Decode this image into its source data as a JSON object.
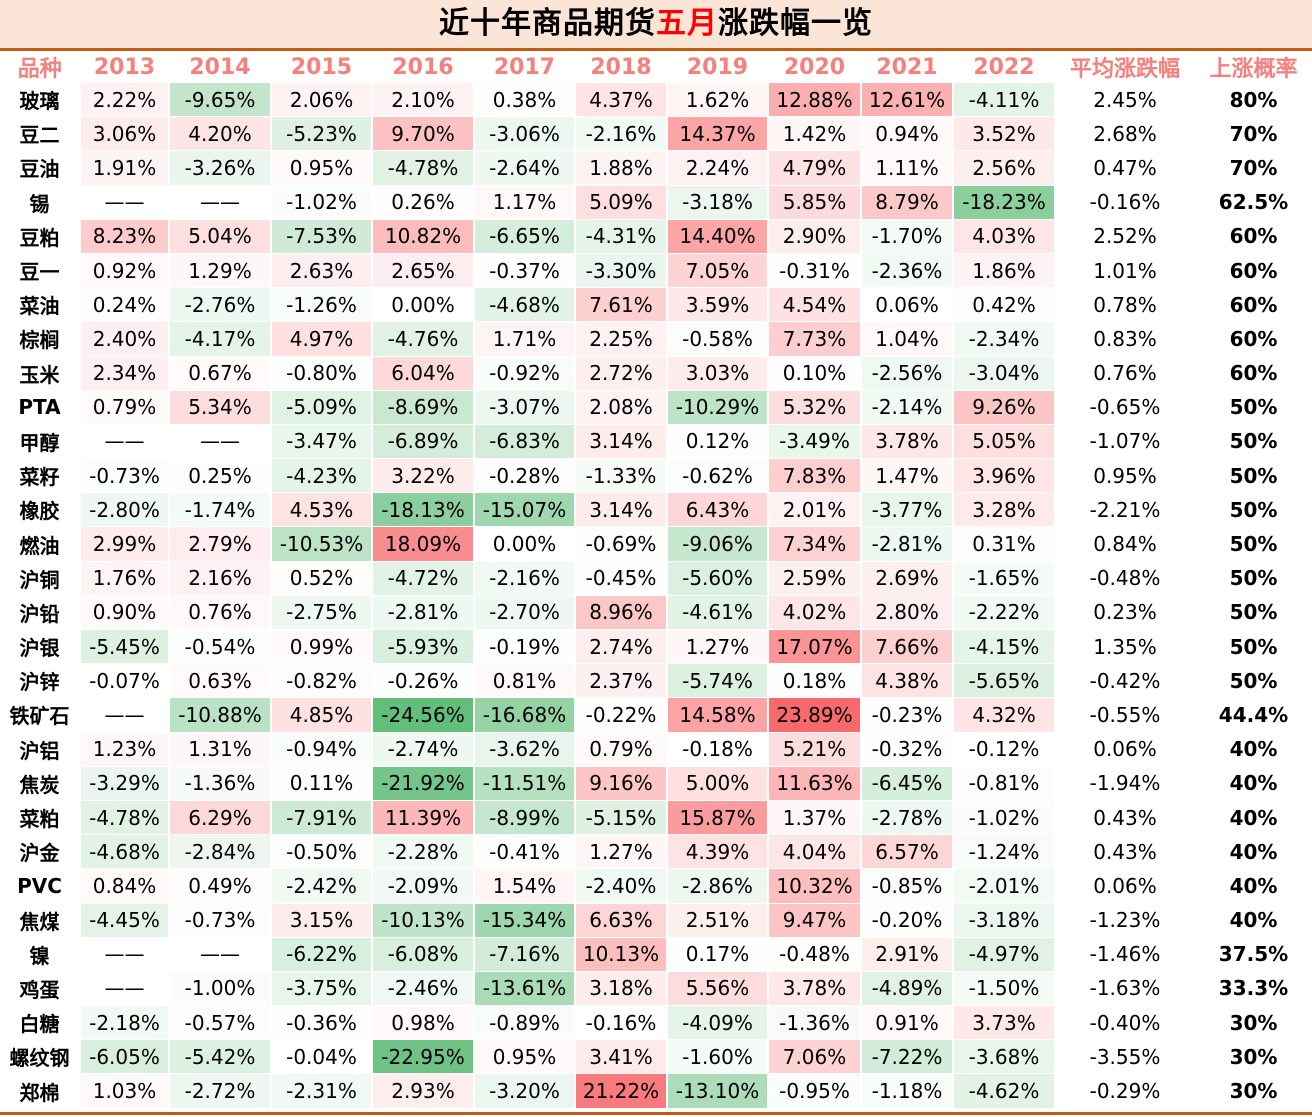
{
  "title": {
    "before": "近十年商品期货",
    "highlight": "五月",
    "after": "涨跌幅一览"
  },
  "chart_data": {
    "type": "table",
    "headers": [
      "品种",
      "2013",
      "2014",
      "2015",
      "2016",
      "2017",
      "2018",
      "2019",
      "2020",
      "2021",
      "2022",
      "平均涨跌幅",
      "上涨概率"
    ],
    "rows": [
      [
        "玻璃",
        "2.22%",
        "-9.65%",
        "2.06%",
        "2.10%",
        "0.38%",
        "4.37%",
        "1.62%",
        "12.88%",
        "12.61%",
        "-4.11%",
        "2.45%",
        "80%"
      ],
      [
        "豆二",
        "3.06%",
        "4.20%",
        "-5.23%",
        "9.70%",
        "-3.06%",
        "-2.16%",
        "14.37%",
        "1.42%",
        "0.94%",
        "3.52%",
        "2.68%",
        "70%"
      ],
      [
        "豆油",
        "1.91%",
        "-3.26%",
        "0.95%",
        "-4.78%",
        "-2.64%",
        "1.88%",
        "2.24%",
        "4.79%",
        "1.11%",
        "2.56%",
        "0.47%",
        "70%"
      ],
      [
        "锡",
        "——",
        "——",
        "-1.02%",
        "0.26%",
        "1.17%",
        "5.09%",
        "-3.18%",
        "5.85%",
        "8.79%",
        "-18.23%",
        "-0.16%",
        "62.5%"
      ],
      [
        "豆粕",
        "8.23%",
        "5.04%",
        "-7.53%",
        "10.82%",
        "-6.65%",
        "-4.31%",
        "14.40%",
        "2.90%",
        "-1.70%",
        "4.03%",
        "2.52%",
        "60%"
      ],
      [
        "豆一",
        "0.92%",
        "1.29%",
        "2.63%",
        "2.65%",
        "-0.37%",
        "-3.30%",
        "7.05%",
        "-0.31%",
        "-2.36%",
        "1.86%",
        "1.01%",
        "60%"
      ],
      [
        "菜油",
        "0.24%",
        "-2.76%",
        "-1.26%",
        "0.00%",
        "-4.68%",
        "7.61%",
        "3.59%",
        "4.54%",
        "0.06%",
        "0.42%",
        "0.78%",
        "60%"
      ],
      [
        "棕榈",
        "2.40%",
        "-4.17%",
        "4.97%",
        "-4.76%",
        "1.71%",
        "2.25%",
        "-0.58%",
        "7.73%",
        "1.04%",
        "-2.34%",
        "0.83%",
        "60%"
      ],
      [
        "玉米",
        "2.34%",
        "0.67%",
        "-0.80%",
        "6.04%",
        "-0.92%",
        "2.72%",
        "3.03%",
        "0.10%",
        "-2.56%",
        "-3.04%",
        "0.76%",
        "60%"
      ],
      [
        "PTA",
        "0.79%",
        "5.34%",
        "-5.09%",
        "-8.69%",
        "-3.07%",
        "2.08%",
        "-10.29%",
        "5.32%",
        "-2.14%",
        "9.26%",
        "-0.65%",
        "50%"
      ],
      [
        "甲醇",
        "——",
        "——",
        "-3.47%",
        "-6.89%",
        "-6.83%",
        "3.14%",
        "0.12%",
        "-3.49%",
        "3.78%",
        "5.05%",
        "-1.07%",
        "50%"
      ],
      [
        "菜籽",
        "-0.73%",
        "0.25%",
        "-4.23%",
        "3.22%",
        "-0.28%",
        "-1.33%",
        "-0.62%",
        "7.83%",
        "1.47%",
        "3.96%",
        "0.95%",
        "50%"
      ],
      [
        "橡胶",
        "-2.80%",
        "-1.74%",
        "4.53%",
        "-18.13%",
        "-15.07%",
        "3.14%",
        "6.43%",
        "2.01%",
        "-3.77%",
        "3.28%",
        "-2.21%",
        "50%"
      ],
      [
        "燃油",
        "2.99%",
        "2.79%",
        "-10.53%",
        "18.09%",
        "0.00%",
        "-0.69%",
        "-9.06%",
        "7.34%",
        "-2.81%",
        "0.31%",
        "0.84%",
        "50%"
      ],
      [
        "沪铜",
        "1.76%",
        "2.16%",
        "0.52%",
        "-4.72%",
        "-2.16%",
        "-0.45%",
        "-5.60%",
        "2.59%",
        "2.69%",
        "-1.65%",
        "-0.48%",
        "50%"
      ],
      [
        "沪铅",
        "0.90%",
        "0.76%",
        "-2.75%",
        "-2.81%",
        "-2.70%",
        "8.96%",
        "-4.61%",
        "4.02%",
        "2.80%",
        "-2.22%",
        "0.23%",
        "50%"
      ],
      [
        "沪银",
        "-5.45%",
        "-0.54%",
        "0.99%",
        "-5.93%",
        "-0.19%",
        "2.74%",
        "1.27%",
        "17.07%",
        "7.66%",
        "-4.15%",
        "1.35%",
        "50%"
      ],
      [
        "沪锌",
        "-0.07%",
        "0.63%",
        "-0.82%",
        "-0.26%",
        "0.81%",
        "2.37%",
        "-5.74%",
        "0.18%",
        "4.38%",
        "-5.65%",
        "-0.42%",
        "50%"
      ],
      [
        "铁矿石",
        "——",
        "-10.88%",
        "4.85%",
        "-24.56%",
        "-16.68%",
        "-0.22%",
        "14.58%",
        "23.89%",
        "-0.23%",
        "4.32%",
        "-0.55%",
        "44.4%"
      ],
      [
        "沪铝",
        "1.23%",
        "1.31%",
        "-0.94%",
        "-2.74%",
        "-3.62%",
        "0.79%",
        "-0.18%",
        "5.21%",
        "-0.32%",
        "-0.12%",
        "0.06%",
        "40%"
      ],
      [
        "焦炭",
        "-3.29%",
        "-1.36%",
        "0.11%",
        "-21.92%",
        "-11.51%",
        "9.16%",
        "5.00%",
        "11.63%",
        "-6.45%",
        "-0.81%",
        "-1.94%",
        "40%"
      ],
      [
        "菜粕",
        "-4.78%",
        "6.29%",
        "-7.91%",
        "11.39%",
        "-8.99%",
        "-5.15%",
        "15.87%",
        "1.37%",
        "-2.78%",
        "-1.02%",
        "0.43%",
        "40%"
      ],
      [
        "沪金",
        "-4.68%",
        "-2.84%",
        "-0.50%",
        "-2.28%",
        "-0.41%",
        "1.27%",
        "4.39%",
        "4.04%",
        "6.57%",
        "-1.24%",
        "0.43%",
        "40%"
      ],
      [
        "PVC",
        "0.84%",
        "0.49%",
        "-2.42%",
        "-2.09%",
        "1.54%",
        "-2.40%",
        "-2.86%",
        "10.32%",
        "-0.85%",
        "-2.01%",
        "0.06%",
        "40%"
      ],
      [
        "焦煤",
        "-4.45%",
        "-0.73%",
        "3.15%",
        "-10.13%",
        "-15.34%",
        "6.63%",
        "2.51%",
        "9.47%",
        "-0.20%",
        "-3.18%",
        "-1.23%",
        "40%"
      ],
      [
        "镍",
        "——",
        "——",
        "-6.22%",
        "-6.08%",
        "-7.16%",
        "10.13%",
        "0.17%",
        "-0.48%",
        "2.91%",
        "-4.97%",
        "-1.46%",
        "37.5%"
      ],
      [
        "鸡蛋",
        "——",
        "-1.00%",
        "-3.75%",
        "-2.46%",
        "-13.61%",
        "3.18%",
        "5.56%",
        "3.78%",
        "-4.89%",
        "-1.50%",
        "-1.63%",
        "33.3%"
      ],
      [
        "白糖",
        "-2.18%",
        "-0.57%",
        "-0.36%",
        "0.98%",
        "-0.89%",
        "-0.16%",
        "-4.09%",
        "-1.36%",
        "0.91%",
        "3.73%",
        "-0.40%",
        "30%"
      ],
      [
        "螺纹钢",
        "-6.05%",
        "-5.42%",
        "-0.04%",
        "-22.95%",
        "0.95%",
        "3.41%",
        "-1.60%",
        "7.06%",
        "-7.22%",
        "-3.68%",
        "-3.55%",
        "30%"
      ],
      [
        "郑棉",
        "1.03%",
        "-2.72%",
        "-2.31%",
        "2.93%",
        "-3.20%",
        "21.22%",
        "-13.10%",
        "-0.95%",
        "-1.18%",
        "-4.62%",
        "-0.29%",
        "30%"
      ]
    ],
    "color_scale": {
      "positive": "#f8696b",
      "negative": "#63be7b",
      "neutral": "#ffffff"
    }
  }
}
